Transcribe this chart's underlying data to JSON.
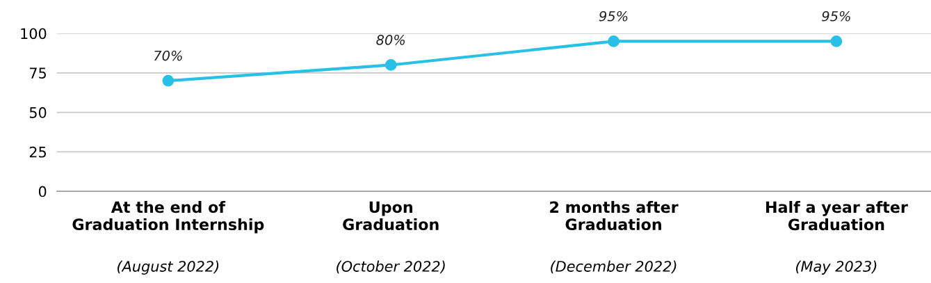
{
  "chart_data": {
    "type": "line",
    "categories": [
      "At the end of\nGraduation Internship\n(August 2022)",
      "Upon\nGraduation\n(October 2022)",
      "2 months after\nGraduation\n(December 2022)",
      "Half a year after\nGraduation\n(May 2023)"
    ],
    "series": [
      {
        "color": "#29c0e8",
        "values": [
          70,
          80,
          95,
          95
        ],
        "value_labels": [
          "70%",
          "80%",
          "95%",
          "95%"
        ]
      }
    ],
    "ylim": [
      0,
      100
    ],
    "yticks": [
      0,
      25,
      50,
      75,
      100
    ],
    "grid": "y",
    "legend": false,
    "marker": "circle",
    "line_style": "solid"
  }
}
